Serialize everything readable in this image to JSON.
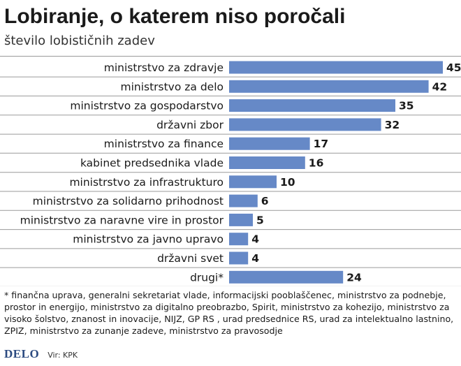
{
  "header": {
    "title": "Lobiranje, o katerem niso poročali",
    "subtitle": "število lobističnih zadev"
  },
  "colors": {
    "bar": "#6689c7",
    "divider": "#9a9a9a"
  },
  "chart_data": {
    "type": "bar",
    "orientation": "horizontal",
    "categories": [
      "ministrstvo za zdravje",
      "ministrstvo za delo",
      "ministrstvo za gospodarstvo",
      "državni zbor",
      "ministrstvo za finance",
      "kabinet predsednika vlade",
      "ministrstvo za infrastrukturo",
      "ministrstvo za solidarno prihodnost",
      "ministrstvo za naravne vire in prostor",
      "ministrstvo za javno upravo",
      "državni svet",
      "drugi*"
    ],
    "values": [
      45,
      42,
      35,
      32,
      17,
      16,
      10,
      6,
      5,
      4,
      4,
      24
    ],
    "title": "Lobiranje, o katerem niso poročali",
    "subtitle": "število lobističnih zadev",
    "xlim": [
      0,
      45
    ],
    "grid": false,
    "legend": "none"
  },
  "footnote": "* finančna uprava, generalni sekretariat vlade, informacijski pooblaščenec, ministrstvo za podnebje, prostor in energijo, ministrstvo za digitalno preobrazbo, Spirit, ministrstvo za kohezijo, ministrstvo za visoko šolstvo, znanost in inovacije, NIJZ, GP RS , urad predsednice RS, urad za intelektualno lastnino, ZPIZ, ministrstvo za zunanje zadeve, ministrstvo za pravosodje",
  "footer": {
    "logo": "DELO",
    "source": "Vir: KPK"
  }
}
